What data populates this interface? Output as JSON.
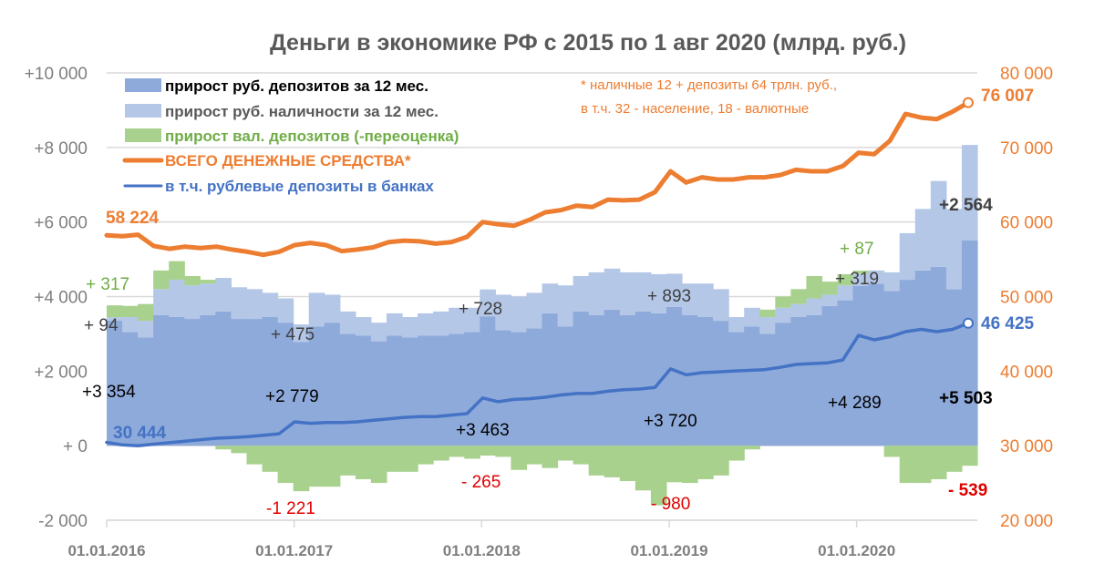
{
  "chart_data": {
    "type": "area",
    "title": "Деньги в экономике РФ с 2015 по 1 авг 2020 (млрд. руб.)",
    "note_lines": [
      "* наличные 12 + депозиты 64 трлн. руб.,",
      "в т.ч. 32 - население, 18 - валютные"
    ],
    "x_start": "01.2016",
    "x_end": "08.2020",
    "x_ticks": [
      "01.01.2016",
      "01.01.2017",
      "01.01.2018",
      "01.01.2019",
      "01.01.2020"
    ],
    "y_left": {
      "range": [
        -2000,
        10000
      ],
      "ticks": [
        "-2 000",
        "+ 0",
        "+2 000",
        "+4 000",
        "+6 000",
        "+8 000",
        "+10 000"
      ],
      "tick_values": [
        -2000,
        0,
        2000,
        4000,
        6000,
        8000,
        10000
      ]
    },
    "y_right": {
      "range": [
        20000,
        80000
      ],
      "ticks": [
        "20 000",
        "30 000",
        "40 000",
        "50 000",
        "60 000",
        "70 000",
        "80 000"
      ],
      "tick_values": [
        20000,
        30000,
        40000,
        50000,
        60000,
        70000,
        80000
      ]
    },
    "grid": true,
    "legend_position": "top-left",
    "colors": {
      "dep": "#8eaadb",
      "cash": "#b4c7e7",
      "fx": "#a9d18e",
      "total": "#ed7d31",
      "rubdep": "#4472c4",
      "neg": "#e00000"
    },
    "series": [
      {
        "name": "прирост руб. депозитов за 12 мес.",
        "axis": "left",
        "kind": "stacked-step",
        "values": [
          3354,
          3050,
          2900,
          3500,
          3450,
          3400,
          3500,
          3600,
          3400,
          3400,
          3450,
          3300,
          2779,
          3200,
          3300,
          3000,
          2950,
          2800,
          2950,
          2900,
          2950,
          2950,
          3000,
          3050,
          3463,
          3100,
          3050,
          3150,
          3550,
          3200,
          3600,
          3500,
          3650,
          3500,
          3600,
          3550,
          3720,
          3500,
          3450,
          3350,
          3050,
          3200,
          3000,
          3300,
          3450,
          3500,
          3750,
          3900,
          4289,
          4350,
          4150,
          4450,
          4700,
          4800,
          4200,
          5503
        ]
      },
      {
        "name": "прирост руб. наличности за 12 мес.",
        "axis": "left",
        "kind": "stacked-step",
        "values": [
          94,
          400,
          450,
          700,
          1000,
          900,
          850,
          900,
          850,
          800,
          650,
          650,
          475,
          900,
          750,
          600,
          500,
          500,
          600,
          550,
          600,
          650,
          700,
          650,
          728,
          950,
          950,
          950,
          800,
          1100,
          950,
          1150,
          1100,
          1150,
          1050,
          1050,
          893,
          850,
          900,
          850,
          400,
          500,
          450,
          400,
          350,
          450,
          300,
          400,
          319,
          350,
          500,
          1250,
          1650,
          2300,
          2150,
          2564
        ]
      },
      {
        "name": "прирост вал. депозитов (-переоценка)",
        "axis": "left",
        "kind": "stacked-step",
        "values": [
          317,
          300,
          450,
          500,
          500,
          250,
          100,
          -100,
          -200,
          -500,
          -700,
          -1000,
          -1221,
          -1100,
          -1100,
          -800,
          -900,
          -1000,
          -700,
          -700,
          -500,
          -400,
          -300,
          -350,
          -265,
          -300,
          -650,
          -500,
          -600,
          -400,
          -500,
          -800,
          -850,
          -950,
          -1200,
          -1600,
          -980,
          -1000,
          -900,
          -800,
          -400,
          -100,
          200,
          300,
          400,
          600,
          350,
          300,
          87,
          0,
          -300,
          -1000,
          -1000,
          -900,
          -700,
          -539
        ]
      },
      {
        "name": "ВСЕГО ДЕНЕЖНЫЕ СРЕДСТВА*",
        "axis": "right",
        "kind": "line",
        "values": [
          58224,
          58100,
          58300,
          56800,
          56400,
          56700,
          56500,
          56700,
          56300,
          56000,
          55600,
          56000,
          56900,
          57200,
          56900,
          56100,
          56300,
          56600,
          57300,
          57500,
          57400,
          57100,
          57300,
          58000,
          60000,
          59700,
          59500,
          60300,
          61300,
          61600,
          62200,
          62000,
          63000,
          62900,
          63000,
          64000,
          66800,
          65300,
          66000,
          65700,
          65700,
          66000,
          66000,
          66300,
          67000,
          66800,
          66800,
          67500,
          69300,
          69100,
          70900,
          74500,
          74000,
          73800,
          74800,
          76007
        ]
      },
      {
        "name": "в т.ч. рублевые депозиты в банках",
        "axis": "right",
        "kind": "line",
        "values": [
          30444,
          30100,
          30000,
          30200,
          30400,
          30600,
          30800,
          31000,
          31100,
          31200,
          31400,
          31600,
          33200,
          33000,
          33100,
          33100,
          33200,
          33400,
          33600,
          33800,
          33900,
          33900,
          34100,
          34300,
          36400,
          35900,
          36200,
          36300,
          36500,
          36800,
          37000,
          37000,
          37300,
          37500,
          37600,
          37800,
          40300,
          39500,
          39800,
          39900,
          40000,
          40100,
          40200,
          40500,
          40900,
          41000,
          41100,
          41500,
          44800,
          44200,
          44600,
          45300,
          45600,
          45300,
          45600,
          46425
        ]
      }
    ],
    "data_labels": {
      "dep": [
        "+3 354",
        "+2 779",
        "+3 463",
        "+3 720",
        "+4 289",
        "+5 503"
      ],
      "cash": [
        "+ 94",
        "+ 475",
        "+ 728",
        "+ 893",
        "+ 319",
        "+2 564"
      ],
      "fx": [
        "+ 317",
        "-1 221",
        "- 265",
        "- 980",
        "+ 87",
        "- 539"
      ],
      "total": [
        "58 224",
        "76 007"
      ],
      "rubdep": [
        "30 444",
        "46 425"
      ]
    }
  }
}
